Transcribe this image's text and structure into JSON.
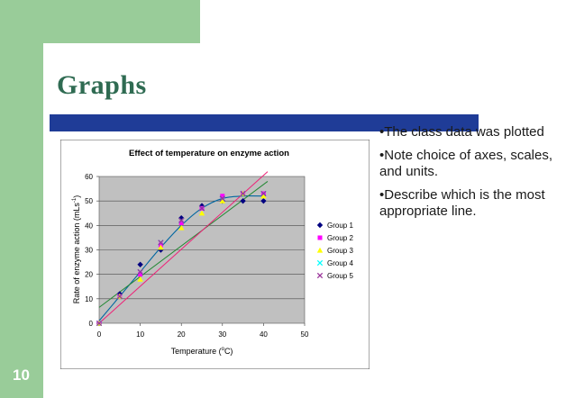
{
  "slide": {
    "title": "Graphs",
    "number": "10",
    "bullets": [
      "•The class data was plotted",
      "•Note choice of axes, scales, and units.",
      "•Describe which is the most appropriate line."
    ]
  },
  "colors": {
    "accent_green": "#99cc99",
    "title_color": "#2f6b52",
    "rule_blue": "#1f3c97",
    "plot_area": "#c0c0c0"
  },
  "chart_data": {
    "type": "scatter",
    "title": "Effect of temperature on enzyme action",
    "xlabel": "Temperature (",
    "xlabel_sup": "o",
    "xlabel_end": "C)",
    "ylabel": "Rate of enzyme action (mLs",
    "ylabel_sup": "-1",
    "ylabel_end": ")",
    "xlim": [
      0,
      50
    ],
    "ylim": [
      0,
      60
    ],
    "xticks": [
      "0",
      "10",
      "20",
      "30",
      "40",
      "50"
    ],
    "yticks": [
      "0",
      "10",
      "20",
      "30",
      "40",
      "50",
      "60"
    ],
    "grid": true,
    "legend": "right",
    "series": [
      {
        "name": "Group 1",
        "color": "#000080",
        "marker": "diamond",
        "x": [
          0,
          5,
          10,
          15,
          20,
          25,
          30,
          35,
          40
        ],
        "y": [
          0,
          12,
          24,
          30,
          43,
          48,
          50,
          50,
          50
        ]
      },
      {
        "name": "Group 2",
        "color": "#ff00ff",
        "marker": "square",
        "x": [
          0,
          5,
          10,
          15,
          20,
          25,
          30,
          35,
          40
        ],
        "y": [
          0,
          11,
          20,
          32,
          41,
          47,
          52,
          53,
          53
        ]
      },
      {
        "name": "Group 3",
        "color": "#ffff00",
        "marker": "triangle",
        "x": [
          0,
          5,
          10,
          15,
          20,
          25,
          30,
          35,
          40
        ],
        "y": [
          0,
          11,
          18,
          31,
          39,
          45,
          50,
          53,
          52
        ]
      },
      {
        "name": "Group 4",
        "color": "#00ffff",
        "marker": "x",
        "x": [
          0,
          5,
          10,
          15,
          20,
          25,
          30,
          35,
          40
        ],
        "y": [
          0,
          11,
          21,
          33,
          42,
          47,
          51,
          53,
          53
        ]
      },
      {
        "name": "Group 5",
        "color": "#993399",
        "marker": "x",
        "x": [
          0,
          5,
          10,
          15,
          20,
          25,
          30,
          35,
          40
        ],
        "y": [
          0,
          11,
          21,
          33,
          42,
          47,
          51,
          53,
          53
        ]
      }
    ],
    "trend_lines": [
      {
        "kind": "curve",
        "color": "#0066a0",
        "x": [
          0,
          5,
          10,
          15,
          20,
          25,
          30,
          35,
          40
        ],
        "y": [
          1,
          11,
          21,
          31,
          40,
          47,
          51,
          52,
          52
        ]
      },
      {
        "kind": "linear",
        "color": "#228833",
        "x": [
          0,
          41
        ],
        "y": [
          6.5,
          58
        ]
      },
      {
        "kind": "linear",
        "color": "#ee2277",
        "x": [
          0,
          41
        ],
        "y": [
          0,
          62
        ]
      }
    ]
  }
}
